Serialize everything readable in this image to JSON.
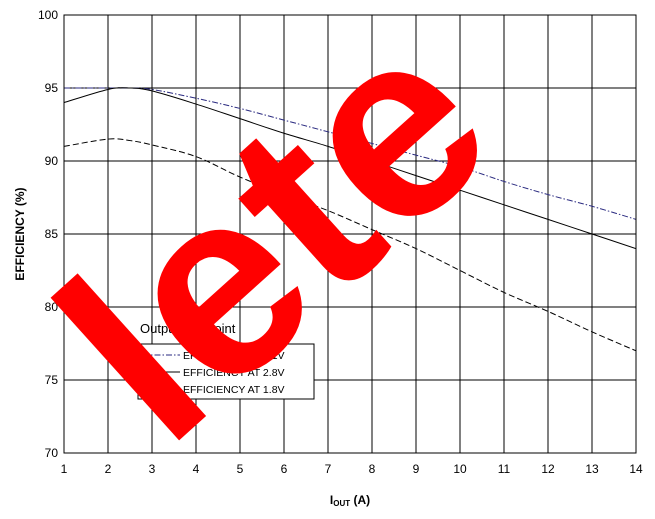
{
  "chart_data": {
    "type": "line",
    "title": "",
    "xlabel": {
      "main": "I",
      "sub": "OUT",
      "unit": " (A)"
    },
    "ylabel": "EFFICIENCY (%)",
    "xlim": [
      1,
      14
    ],
    "ylim": [
      70,
      100
    ],
    "x_ticks": [
      "1",
      "2",
      "3",
      "4",
      "5",
      "6",
      "7",
      "8",
      "9",
      "10",
      "11",
      "12",
      "13",
      "14"
    ],
    "y_ticks": [
      "70",
      "75",
      "80",
      "85",
      "90",
      "95",
      "100"
    ],
    "grid": true,
    "legend": {
      "title": "Output Set Point",
      "placement": "lower-left",
      "entries": [
        "EFFICIENCY AT 3.1V",
        "EFFICIENCY AT 2.8V",
        "EFFICIENCY AT 1.8V"
      ]
    },
    "series": [
      {
        "name": "EFFICIENCY AT 3.1V",
        "color": "#2a2a80",
        "dash": "dashdot",
        "x": [
          1,
          2,
          2.5,
          3,
          4,
          5,
          6,
          7,
          8,
          9,
          10,
          11,
          12,
          13,
          14
        ],
        "y": [
          95,
          95,
          95,
          94.9,
          94.3,
          93.6,
          92.8,
          92.0,
          91.2,
          90.4,
          89.6,
          88.6,
          87.7,
          86.9,
          86.0
        ]
      },
      {
        "name": "EFFICIENCY AT 2.8V",
        "color": "#000000",
        "dash": "solid",
        "x": [
          1,
          2,
          2.5,
          3,
          4,
          5,
          6,
          7,
          8,
          9,
          10,
          11,
          12,
          13,
          14
        ],
        "y": [
          94.0,
          94.9,
          95.0,
          94.8,
          93.9,
          92.9,
          91.9,
          91.0,
          90.0,
          89.0,
          88.0,
          87.0,
          86.0,
          85.0,
          84.0
        ]
      },
      {
        "name": "EFFICIENCY AT 1.8V",
        "color": "#000000",
        "dash": "dashed",
        "x": [
          1,
          2,
          2.5,
          3,
          4,
          5,
          6,
          7,
          8,
          9,
          10,
          11,
          12,
          13,
          14
        ],
        "y": [
          91.0,
          91.5,
          91.4,
          91.1,
          90.3,
          88.9,
          87.7,
          86.6,
          85.3,
          84.0,
          82.5,
          81.0,
          79.7,
          78.3,
          77.0
        ]
      }
    ]
  },
  "watermark": {
    "text": "lete",
    "color": "#ff0000"
  }
}
